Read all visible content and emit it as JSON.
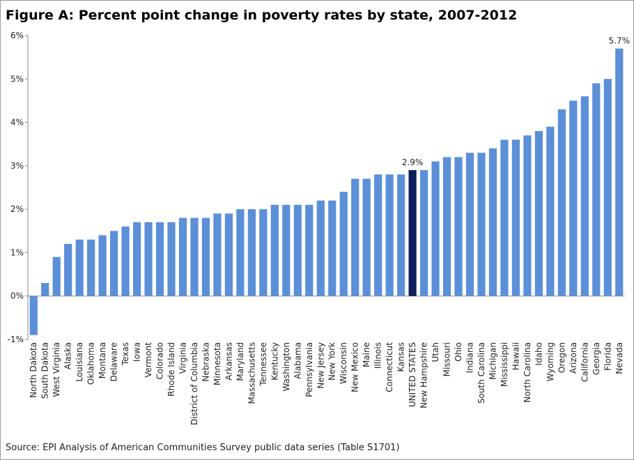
{
  "chart_data": {
    "type": "bar",
    "title": "Figure A: Percent point change in poverty rates by state, 2007-2012",
    "source": "Source: EPI Analysis of American Communities Survey public data series (Table  S1701)",
    "categories": [
      "North Dakota",
      "South Dakota",
      "West Virginia",
      "Alaska",
      "Louisiana",
      "Oklahoma",
      "Montana",
      "Delaware",
      "Texas",
      "Iowa",
      "Vermont",
      "Colorado",
      "Rhode Island",
      "Virginia",
      "District of Columbia",
      "Nebraska",
      "Minnesota",
      "Arkansas",
      "Maryland",
      "Massachusetts",
      "Tennessee",
      "Kentucky",
      "Washington",
      "Alabama",
      "Pennsylvania",
      "New Jersey",
      "New York",
      "Wisconsin",
      "New Mexico",
      "Maine",
      "Illinois",
      "Connecticut",
      "Kansas",
      "UNITED STATES",
      "New Hampshire",
      "Utah",
      "Missouri",
      "Ohio",
      "Indiana",
      "South Carolina",
      "Michigan",
      "Mississippi",
      "Hawaii",
      "North Carolina",
      "Idaho",
      "Wyoming",
      "Oregon",
      "Arizona",
      "California",
      "Georgia",
      "Florida",
      "Nevada"
    ],
    "values": [
      -0.9,
      0.3,
      0.9,
      1.2,
      1.3,
      1.3,
      1.4,
      1.5,
      1.6,
      1.7,
      1.7,
      1.7,
      1.7,
      1.8,
      1.8,
      1.8,
      1.9,
      1.9,
      2.0,
      2.0,
      2.0,
      2.1,
      2.1,
      2.1,
      2.1,
      2.2,
      2.2,
      2.4,
      2.7,
      2.7,
      2.8,
      2.8,
      2.8,
      2.9,
      2.9,
      3.1,
      3.2,
      3.2,
      3.3,
      3.3,
      3.4,
      3.6,
      3.6,
      3.7,
      3.8,
      3.9,
      4.3,
      4.5,
      4.6,
      4.9,
      5.0,
      5.7
    ],
    "value_labels": [
      null,
      null,
      null,
      null,
      null,
      null,
      null,
      null,
      null,
      null,
      null,
      null,
      null,
      null,
      null,
      null,
      null,
      null,
      null,
      null,
      null,
      null,
      null,
      null,
      null,
      null,
      null,
      null,
      null,
      null,
      null,
      null,
      null,
      "2.9%",
      null,
      null,
      null,
      null,
      null,
      null,
      null,
      null,
      null,
      null,
      null,
      null,
      null,
      null,
      null,
      null,
      null,
      "5.7%"
    ],
    "colors": [
      "#5b8fd8",
      "#5b8fd8",
      "#5b8fd8",
      "#5b8fd8",
      "#5b8fd8",
      "#5b8fd8",
      "#5b8fd8",
      "#5b8fd8",
      "#5b8fd8",
      "#5b8fd8",
      "#5b8fd8",
      "#5b8fd8",
      "#5b8fd8",
      "#5b8fd8",
      "#5b8fd8",
      "#5b8fd8",
      "#5b8fd8",
      "#5b8fd8",
      "#5b8fd8",
      "#5b8fd8",
      "#5b8fd8",
      "#5b8fd8",
      "#5b8fd8",
      "#5b8fd8",
      "#5b8fd8",
      "#5b8fd8",
      "#5b8fd8",
      "#5b8fd8",
      "#5b8fd8",
      "#5b8fd8",
      "#5b8fd8",
      "#5b8fd8",
      "#5b8fd8",
      "#0d1f5c",
      "#5b8fd8",
      "#5b8fd8",
      "#5b8fd8",
      "#5b8fd8",
      "#5b8fd8",
      "#5b8fd8",
      "#5b8fd8",
      "#5b8fd8",
      "#5b8fd8",
      "#5b8fd8",
      "#5b8fd8",
      "#5b8fd8",
      "#5b8fd8",
      "#5b8fd8",
      "#5b8fd8",
      "#5b8fd8",
      "#5b8fd8",
      "#5b8fd8"
    ],
    "ylim": [
      -1,
      6
    ],
    "yticks": [
      {
        "value": -1,
        "label": "-1%"
      },
      {
        "value": 0,
        "label": "0%"
      },
      {
        "value": 1,
        "label": "1%"
      },
      {
        "value": 2,
        "label": "2%"
      },
      {
        "value": 3,
        "label": "3%"
      },
      {
        "value": 4,
        "label": "4%"
      },
      {
        "value": 5,
        "label": "5%"
      },
      {
        "value": 6,
        "label": "6%"
      }
    ],
    "grid": false
  }
}
